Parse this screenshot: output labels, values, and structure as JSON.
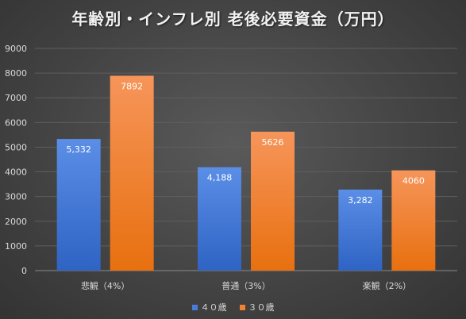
{
  "chart_data": {
    "type": "bar",
    "title": "年齢別・インフレ別 老後必要資金（万円）",
    "categories": [
      "悲観（4%）",
      "普通（3%）",
      "楽観（2%）"
    ],
    "series": [
      {
        "name": "４０歳",
        "values": [
          5332,
          4188,
          3282
        ],
        "labels": [
          "5,332",
          "4,188",
          "3,282"
        ],
        "color": "#4a7bd6"
      },
      {
        "name": "３０歳",
        "values": [
          7892,
          5626,
          4060
        ],
        "labels": [
          "7892",
          "5626",
          "4060"
        ],
        "color": "#f08232"
      }
    ],
    "ylim": [
      0,
      9000
    ],
    "yticks": [
      "0",
      "1000",
      "2000",
      "3000",
      "4000",
      "5000",
      "6000",
      "7000",
      "8000",
      "9000"
    ],
    "grid": true,
    "legend_position": "bottom"
  }
}
